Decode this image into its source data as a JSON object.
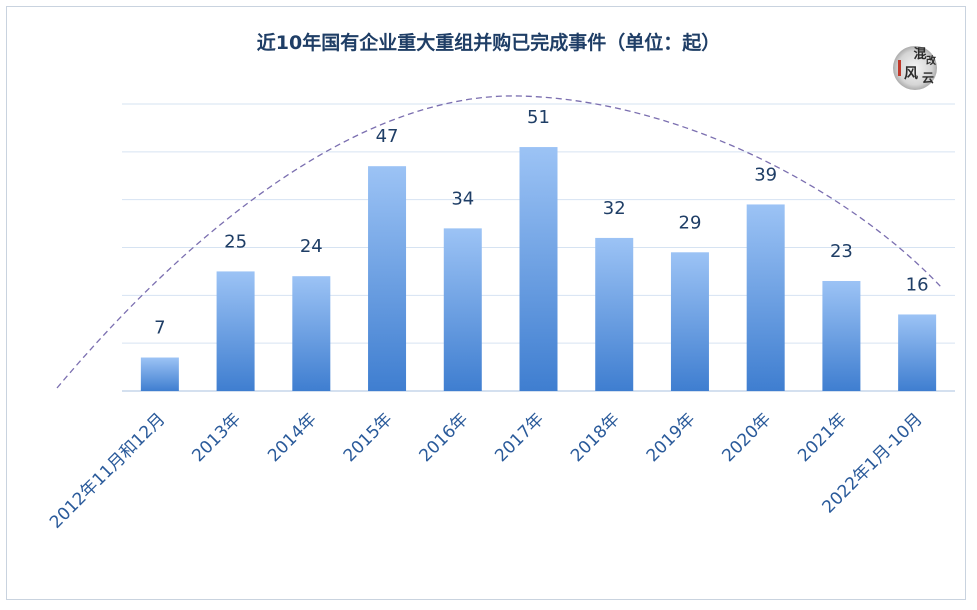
{
  "chart_data": {
    "type": "bar",
    "title": "近10年国有企业重大重组并购已完成事件（单位：起）",
    "categories": [
      "2012年11月和12月",
      "2013年",
      "2014年",
      "2015年",
      "2016年",
      "2017年",
      "2018年",
      "2019年",
      "2020年",
      "2021年",
      "2022年1月-10月"
    ],
    "values": [
      7,
      25,
      24,
      47,
      34,
      51,
      32,
      29,
      39,
      23,
      16
    ],
    "ylim": [
      0,
      60
    ],
    "grid": true,
    "bar_gradient": [
      "#9cc3f5",
      "#3f7ed0"
    ],
    "trend_line": "dashed-arc",
    "trend_color": "#7b6fb0"
  },
  "watermark": {
    "text": "混改风云",
    "colors": [
      "#2b2b2b",
      "#c0392b"
    ]
  }
}
